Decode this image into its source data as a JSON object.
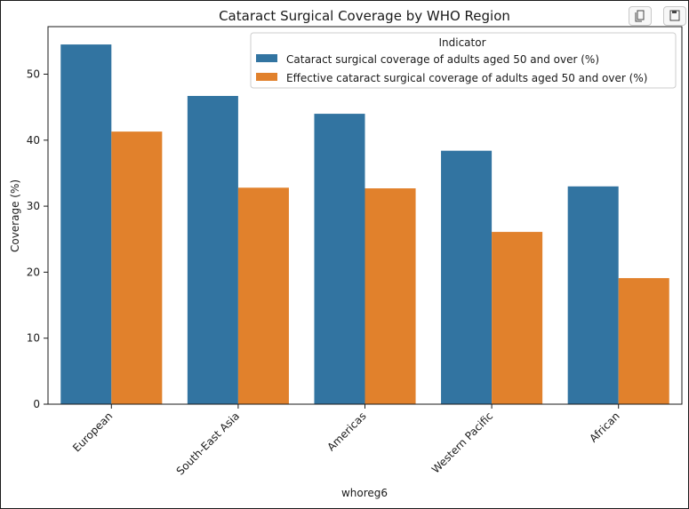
{
  "toolbar": {
    "copy_icon": "copy-icon",
    "save_icon": "save-icon"
  },
  "chart_data": {
    "type": "bar",
    "title": "Cataract Surgical Coverage by WHO Region",
    "xlabel": "whoreg6",
    "ylabel": "Coverage (%)",
    "ylim": [
      0,
      57.2
    ],
    "yticks": [
      0,
      10,
      20,
      30,
      40,
      50
    ],
    "grid": false,
    "categories": [
      "European",
      "South-East Asia",
      "Americas",
      "Western Pacific",
      "African"
    ],
    "legend": {
      "title": "Indicator",
      "placement": "top-right"
    },
    "series": [
      {
        "name": "Cataract surgical coverage of adults aged 50 and over (%)",
        "color": "#3274a1",
        "values": [
          54.5,
          46.7,
          44.0,
          38.4,
          33.0
        ]
      },
      {
        "name": "Effective cataract surgical coverage of adults aged 50 and over (%)",
        "color": "#e1812c",
        "values": [
          41.3,
          32.8,
          32.7,
          26.1,
          19.1
        ]
      }
    ]
  }
}
